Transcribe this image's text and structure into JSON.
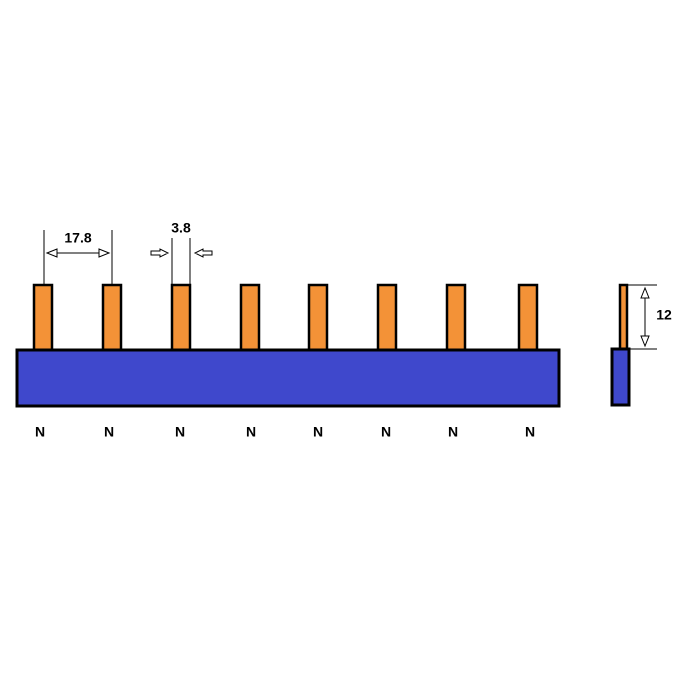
{
  "dimensions": {
    "pitch": "17.8",
    "pin_width": "3.8",
    "pin_height": "12"
  },
  "pins": {
    "labels": [
      "N",
      "N",
      "N",
      "N",
      "N",
      "N",
      "N",
      "N"
    ]
  }
}
